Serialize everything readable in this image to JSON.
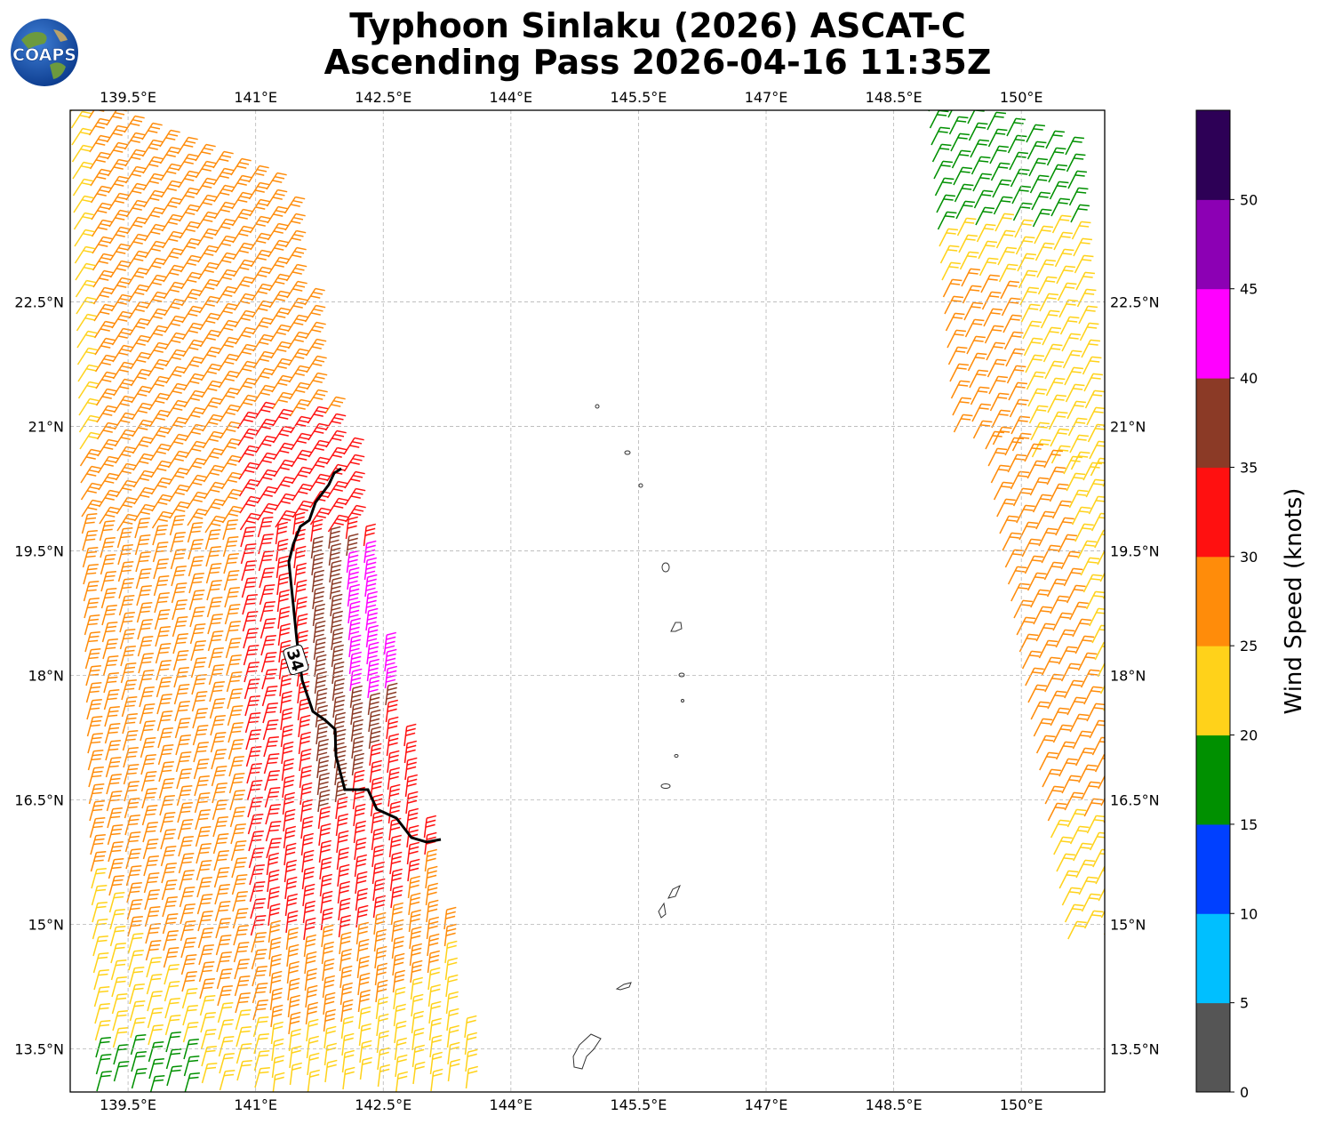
{
  "title_line1": "Typhoon Sinlaku (2026) ASCAT-C",
  "title_line2": "Ascending Pass 2026-04-16 11:35Z",
  "logo_text": "COAPS",
  "map": {
    "lon_range": [
      138.82,
      150.98
    ],
    "lat_range": [
      12.98,
      24.81
    ],
    "lon_ticks": [
      "139.5°E",
      "141°E",
      "142.5°E",
      "144°E",
      "145.5°E",
      "147°E",
      "148.5°E",
      "150°E"
    ],
    "lat_ticks": [
      "22.5°N",
      "21°N",
      "19.5°N",
      "18°N",
      "16.5°N",
      "15°N",
      "13.5°N"
    ],
    "lon_values": [
      139.5,
      141,
      142.5,
      144,
      145.5,
      147,
      148.5,
      150
    ],
    "lat_values": [
      22.5,
      21,
      19.5,
      18,
      16.5,
      15,
      13.5
    ],
    "gridlines": true
  },
  "contour_label": "34",
  "colorbar": {
    "label": "Wind Speed (knots)",
    "ticks": [
      "0",
      "5",
      "10",
      "15",
      "20",
      "25",
      "30",
      "35",
      "40",
      "45",
      "50"
    ],
    "colors": [
      "#555555",
      "#00bfff",
      "#0040ff",
      "#009000",
      "#ffd21a",
      "#ff8c0a",
      "#ff1010",
      "#8b3a26",
      "#ff00ff",
      "#8c00b4",
      "#2d0056"
    ]
  }
}
